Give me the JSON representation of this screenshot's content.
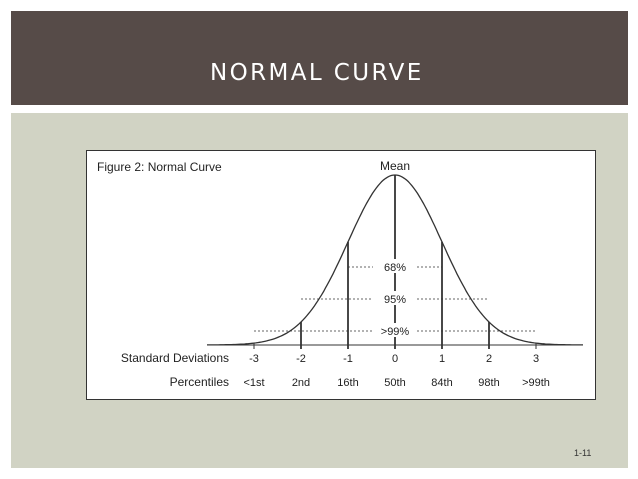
{
  "slide": {
    "title": "NORMAL CURVE",
    "slide_number": "1-11"
  },
  "figure": {
    "caption": "Figure 2: Normal Curve",
    "mean_label": "Mean",
    "row_labels": {
      "sd": "Standard Deviations",
      "pct": "Percentiles"
    },
    "sd_values": [
      "-3",
      "-2",
      "-1",
      "0",
      "1",
      "2",
      "3"
    ],
    "percentiles": [
      "<1st",
      "2nd",
      "16th",
      "50th",
      "84th",
      "98th",
      ">99th"
    ],
    "bands": [
      {
        "label": "68%",
        "from": -1,
        "to": 1
      },
      {
        "label": "95%",
        "from": -2,
        "to": 2
      },
      {
        "label": ">99%",
        "from": -3,
        "to": 3
      }
    ]
  },
  "colors": {
    "header_bg": "#564b48",
    "content_bg": "#d1d3c4",
    "line": "#333333"
  }
}
